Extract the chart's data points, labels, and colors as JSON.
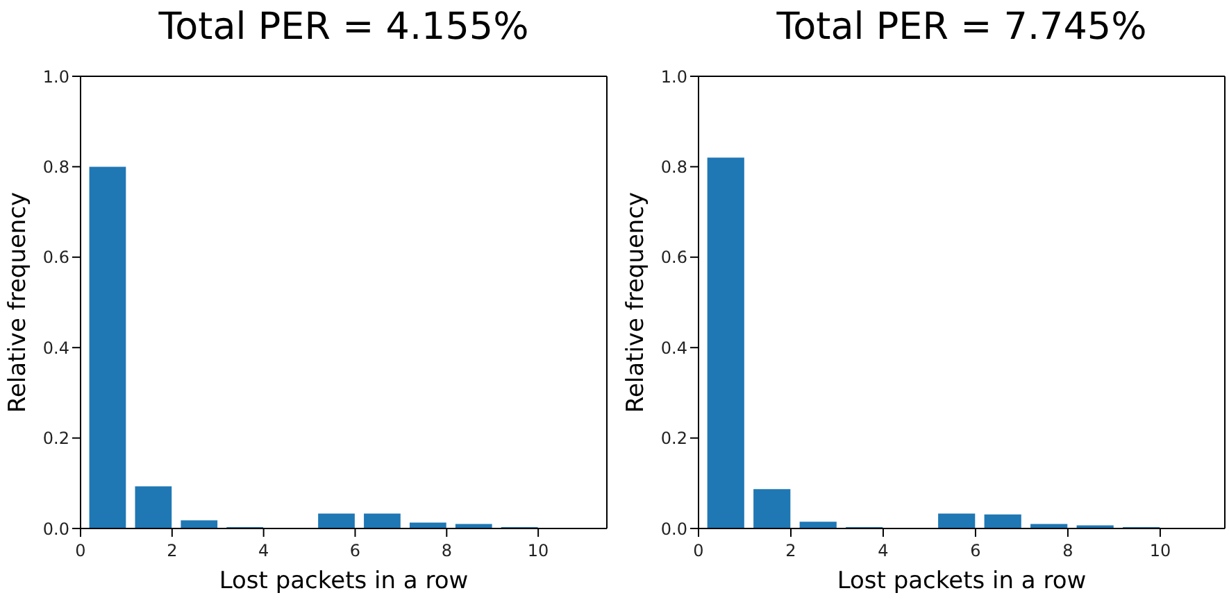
{
  "chart_data": [
    {
      "type": "bar",
      "title": "Total PER = 4.155%",
      "xlabel": "Lost packets in a row",
      "ylabel": "Relative frequency",
      "x": [
        0.6,
        1.6,
        2.6,
        3.6,
        4.6,
        5.6,
        6.6,
        7.6,
        8.6,
        9.6
      ],
      "values": [
        0.8,
        0.093,
        0.018,
        0.003,
        0,
        0.033,
        0.033,
        0.013,
        0.01,
        0.003
      ],
      "color": "#1f77b4",
      "xlim": [
        0,
        11.5
      ],
      "xticks": [
        0,
        2,
        4,
        6,
        8,
        10
      ],
      "ylim": [
        0,
        1
      ],
      "yticks": [
        {
          "value": 0,
          "label": "0.0"
        },
        {
          "value": 0.2,
          "label": "0.2"
        },
        {
          "value": 0.4,
          "label": "0.4"
        },
        {
          "value": 0.6,
          "label": "0.6"
        },
        {
          "value": 0.8,
          "label": "0.8"
        },
        {
          "value": 1,
          "label": "1.0"
        }
      ]
    },
    {
      "type": "bar",
      "title": "Total PER = 7.745%",
      "xlabel": "Lost packets in a row",
      "ylabel": "Relative frequency",
      "x": [
        0.6,
        1.6,
        2.6,
        3.6,
        4.6,
        5.6,
        6.6,
        7.6,
        8.6,
        9.6
      ],
      "values": [
        0.82,
        0.087,
        0.015,
        0.003,
        0,
        0.033,
        0.031,
        0.01,
        0.007,
        0.003
      ],
      "color": "#1f77b4",
      "xlim": [
        0,
        11.4
      ],
      "xticks": [
        0,
        2,
        4,
        6,
        8,
        10
      ],
      "ylim": [
        0,
        1
      ],
      "yticks": [
        {
          "value": 0,
          "label": "0.0"
        },
        {
          "value": 0.2,
          "label": "0.2"
        },
        {
          "value": 0.4,
          "label": "0.4"
        },
        {
          "value": 0.6,
          "label": "0.6"
        },
        {
          "value": 0.8,
          "label": "0.8"
        },
        {
          "value": 1,
          "label": "1.0"
        }
      ]
    }
  ]
}
